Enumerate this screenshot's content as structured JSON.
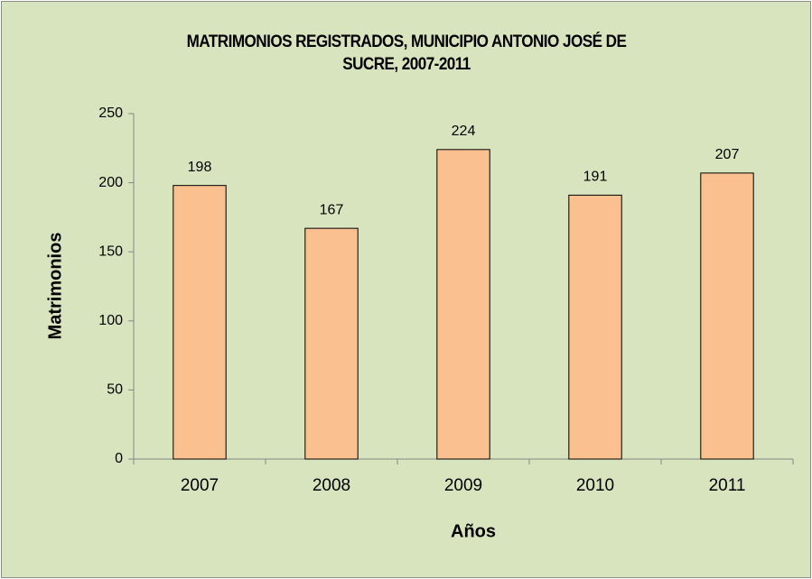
{
  "chart_data": {
    "type": "bar",
    "title": "MATRIMONIOS REGISTRADOS, MUNICIPIO ANTONIO JOSÉ DE SUCRE, 2007-2011",
    "x_label": "Años",
    "y_label": "Matrimonios",
    "categories": [
      "2007",
      "2008",
      "2009",
      "2010",
      "2011"
    ],
    "values": [
      198,
      167,
      224,
      191,
      207
    ],
    "color": "#fac090",
    "ylim": [
      0,
      250
    ],
    "yticks": [
      0,
      50,
      100,
      150,
      200,
      250
    ],
    "grid": false
  }
}
